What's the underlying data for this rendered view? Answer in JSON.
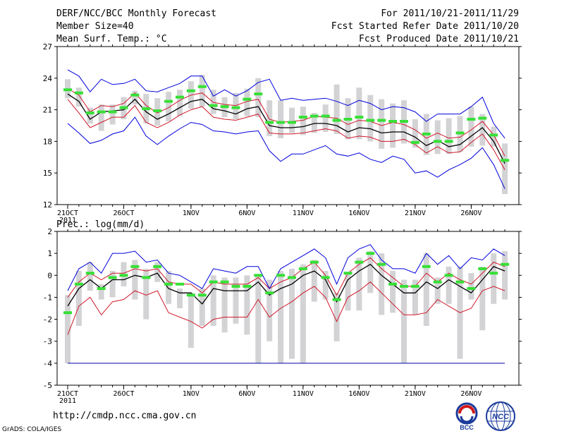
{
  "header": {
    "title": "DERF/NCC/BCC Monthly Forecast",
    "member_size": "Member Size=40",
    "variable": "Mean Surf. Temp.: °C",
    "period": "For 2011/10/21-2011/11/29",
    "fcst_started": "Fcst Started Refer Date 2011/10/20",
    "fcst_produced": "Fcst Produced Date 2011/10/21"
  },
  "footer": {
    "url": "http://cmdp.ncc.cma.gov.cn",
    "grads": "GrADS: COLA/IGES",
    "logo_bcc": "BCC",
    "logo_ncc": "NCC"
  },
  "colors": {
    "mean": "#000000",
    "spread": "#d01828",
    "envelope": "#0000dd",
    "member_box": "#d3d3d6",
    "control": "#36e036",
    "baseline": "#0000aa"
  },
  "chart_data": [
    {
      "type": "line",
      "title": "Mean Surf. Temp.: °C",
      "ylim": [
        12,
        27
      ],
      "yticks": [
        12,
        15,
        18,
        21,
        24,
        27
      ],
      "xtick_labels": [
        "21OCT",
        "26OCT",
        "1NOV",
        "6NOV",
        "11NOV",
        "16NOV",
        "21NOV",
        "26NOV"
      ],
      "xtick_days": [
        0,
        5,
        11,
        16,
        21,
        26,
        31,
        36
      ],
      "xsub_label": "2011",
      "days": 40,
      "series": [
        {
          "name": "ensemble mean",
          "values": [
            22.5,
            21.8,
            20.1,
            20.8,
            20.9,
            21.0,
            22.0,
            20.8,
            20.1,
            20.6,
            21.2,
            21.8,
            22.0,
            21.1,
            20.9,
            20.6,
            21.1,
            21.3,
            19.5,
            19.3,
            19.3,
            19.4,
            19.7,
            19.7,
            19.5,
            18.9,
            19.3,
            19.2,
            18.8,
            18.9,
            18.9,
            18.4,
            17.6,
            18.1,
            17.5,
            17.7,
            18.5,
            19.3,
            18.0,
            15.9
          ]
        },
        {
          "name": "upper spread",
          "values": [
            23.0,
            22.4,
            20.8,
            21.4,
            21.3,
            21.6,
            22.6,
            21.4,
            20.7,
            21.2,
            21.9,
            22.4,
            22.6,
            21.7,
            21.5,
            21.4,
            21.8,
            22.0,
            20.1,
            19.8,
            19.9,
            20.0,
            20.4,
            20.3,
            20.2,
            19.6,
            20.0,
            19.9,
            19.5,
            19.8,
            19.6,
            19.1,
            18.3,
            18.8,
            18.3,
            18.4,
            19.1,
            19.9,
            18.6,
            16.6
          ]
        },
        {
          "name": "lower spread",
          "values": [
            22.0,
            20.7,
            19.3,
            19.8,
            20.3,
            20.3,
            21.4,
            19.8,
            19.3,
            19.8,
            20.5,
            21.0,
            21.3,
            20.3,
            20.1,
            20.0,
            20.3,
            20.6,
            18.8,
            18.7,
            18.7,
            18.8,
            19.0,
            19.2,
            19.0,
            18.3,
            18.5,
            18.4,
            18.0,
            18.0,
            18.2,
            17.7,
            16.9,
            17.5,
            16.9,
            17.0,
            17.9,
            18.7,
            17.2,
            15.3
          ]
        },
        {
          "name": "max envelope",
          "values": [
            24.8,
            24.2,
            22.7,
            23.9,
            23.4,
            23.5,
            23.9,
            22.8,
            22.7,
            23.1,
            23.5,
            24.2,
            24.2,
            22.3,
            22.9,
            22.3,
            22.8,
            23.6,
            23.9,
            21.9,
            22.1,
            21.9,
            22.0,
            22.1,
            21.8,
            21.4,
            21.9,
            21.6,
            21.0,
            21.3,
            21.2,
            20.8,
            19.9,
            20.6,
            20.6,
            20.6,
            21.3,
            22.2,
            19.7,
            18.3
          ]
        },
        {
          "name": "min envelope",
          "values": [
            19.7,
            18.8,
            17.8,
            18.1,
            18.7,
            19.0,
            20.3,
            18.5,
            17.7,
            18.5,
            19.2,
            19.8,
            19.6,
            19.0,
            18.9,
            18.7,
            18.9,
            19.0,
            17.1,
            16.1,
            16.8,
            16.8,
            17.2,
            17.6,
            16.8,
            16.6,
            16.9,
            16.3,
            16.0,
            16.6,
            16.3,
            15.0,
            15.2,
            14.6,
            15.3,
            15.8,
            16.4,
            17.4,
            15.8,
            13.5
          ]
        },
        {
          "name": "control",
          "values": [
            22.9,
            22.6,
            20.7,
            20.8,
            20.8,
            21.2,
            22.4,
            21.1,
            20.9,
            21.8,
            22.2,
            22.8,
            23.2,
            21.4,
            21.3,
            21.2,
            22.0,
            22.5,
            19.8,
            19.8,
            19.8,
            20.3,
            20.4,
            20.4,
            20.0,
            20.1,
            20.3,
            20.0,
            20.0,
            19.9,
            19.9,
            17.9,
            18.7,
            18.0,
            18.0,
            18.8,
            20.1,
            20.2,
            18.6,
            16.2
          ]
        }
      ],
      "member_range_low": [
        22.1,
        21.3,
        19.7,
        19.0,
        19.6,
        20.1,
        21.5,
        19.7,
        19.5,
        19.9,
        20.4,
        21.1,
        21.3,
        20.6,
        20.3,
        20.1,
        20.4,
        20.3,
        18.5,
        18.3,
        18.8,
        18.6,
        18.8,
        18.9,
        18.7,
        18.2,
        18.2,
        18.0,
        17.3,
        17.4,
        17.8,
        17.4,
        16.7,
        16.8,
        16.8,
        17.0,
        17.5,
        17.6,
        17.5,
        13.0
      ],
      "member_range_high": [
        23.9,
        23.1,
        21.2,
        21.5,
        21.5,
        22.2,
        22.8,
        22.5,
        22.1,
        22.7,
        22.9,
        23.7,
        24.3,
        22.9,
        22.2,
        22.6,
        23.0,
        24.0,
        21.9,
        21.9,
        21.2,
        21.3,
        20.7,
        21.5,
        23.4,
        22.1,
        23.1,
        22.4,
        22.0,
        21.6,
        21.9,
        20.1,
        20.6,
        20.0,
        20.2,
        20.4,
        21.3,
        20.6,
        19.4,
        17.8
      ]
    },
    {
      "type": "line",
      "title": "Prec.: log(mm/d)",
      "ylim": [
        -5,
        2
      ],
      "yticks": [
        -5,
        -4,
        -3,
        -2,
        -1,
        0,
        1,
        2
      ],
      "xtick_labels": [
        "21OCT",
        "26OCT",
        "1NOV",
        "6NOV",
        "11NOV",
        "16NOV",
        "21NOV",
        "26NOV"
      ],
      "xtick_days": [
        0,
        5,
        11,
        16,
        21,
        26,
        31,
        36
      ],
      "xsub_label": "2011",
      "days": 40,
      "baseline": -4,
      "series": [
        {
          "name": "ensemble mean",
          "values": [
            -1.4,
            -0.6,
            -0.2,
            -0.6,
            -0.2,
            -0.2,
            0.0,
            -0.1,
            0.1,
            -0.6,
            -0.8,
            -0.8,
            -1.3,
            -0.6,
            -0.7,
            -0.7,
            -0.7,
            -0.3,
            -0.9,
            -0.6,
            -0.4,
            0.0,
            0.2,
            -0.2,
            -1.2,
            -0.2,
            0.2,
            0.5,
            0.0,
            -0.4,
            -0.8,
            -0.8,
            -0.3,
            -0.6,
            -0.2,
            -0.5,
            -0.8,
            -0.2,
            0.4,
            0.2
          ]
        },
        {
          "name": "upper spread",
          "values": [
            -1.0,
            -0.3,
            0.1,
            -0.2,
            0.1,
            0.1,
            0.3,
            0.2,
            0.3,
            -0.3,
            -0.4,
            -0.4,
            -0.8,
            -0.3,
            -0.4,
            -0.4,
            -0.4,
            -0.1,
            -0.6,
            -0.3,
            -0.1,
            0.3,
            0.6,
            0.0,
            -0.9,
            0.1,
            0.5,
            0.8,
            0.3,
            -0.1,
            -0.5,
            -0.5,
            0.1,
            -0.3,
            0.1,
            -0.2,
            -0.4,
            0.1,
            0.6,
            0.4
          ]
        },
        {
          "name": "lower spread",
          "values": [
            -2.7,
            -1.4,
            -1.0,
            -1.8,
            -1.2,
            -1.1,
            -0.7,
            -0.9,
            -0.7,
            -1.7,
            -1.9,
            -2.1,
            -2.4,
            -2.0,
            -1.9,
            -1.9,
            -1.9,
            -1.1,
            -1.9,
            -1.5,
            -1.2,
            -0.8,
            -0.5,
            -1.0,
            -2.1,
            -1.0,
            -0.7,
            -0.3,
            -0.8,
            -1.3,
            -1.8,
            -1.8,
            -1.7,
            -1.1,
            -1.4,
            -1.7,
            -1.5,
            -0.7,
            -0.5,
            -0.7
          ]
        },
        {
          "name": "max envelope",
          "values": [
            -0.7,
            0.3,
            0.6,
            0.1,
            1.0,
            1.0,
            1.1,
            0.6,
            0.7,
            0.1,
            0.0,
            -0.3,
            -0.6,
            0.3,
            0.2,
            0.1,
            0.4,
            0.4,
            -0.6,
            0.3,
            0.6,
            0.9,
            1.2,
            0.8,
            -0.4,
            0.8,
            1.2,
            1.4,
            0.7,
            0.3,
            0.3,
            0.1,
            1.0,
            0.5,
            0.9,
            0.3,
            0.8,
            0.7,
            1.2,
            0.9
          ]
        },
        {
          "name": "control",
          "values": [
            -1.7,
            -0.4,
            0.1,
            -0.6,
            -0.1,
            0.0,
            0.4,
            -0.1,
            0.4,
            -0.4,
            -0.4,
            -0.9,
            -0.9,
            -0.3,
            -0.3,
            -0.5,
            -0.5,
            0.0,
            -0.8,
            0.0,
            -0.1,
            0.3,
            0.6,
            -0.1,
            -1.1,
            0.1,
            0.6,
            1.0,
            0.5,
            -0.4,
            -0.5,
            -0.5,
            0.4,
            -0.3,
            0.0,
            -0.3,
            -0.6,
            0.3,
            0.1,
            0.5
          ]
        }
      ],
      "member_range_low": [
        -4.0,
        -2.3,
        -0.7,
        -1.1,
        -1.0,
        -0.5,
        -1.1,
        -2.0,
        -0.3,
        -1.3,
        -1.5,
        -3.3,
        -2.3,
        -2.3,
        -2.6,
        -2.2,
        -2.7,
        -4.0,
        -3.0,
        -4.0,
        -3.8,
        -4.0,
        -1.2,
        -1.1,
        -3.0,
        -1.6,
        -1.6,
        -0.8,
        -1.8,
        -1.7,
        -4.0,
        -1.8,
        -2.3,
        -1.3,
        -1.3,
        -3.8,
        -1.1,
        -2.5,
        -1.3,
        -1.1
      ],
      "member_range_high": [
        -0.9,
        0.2,
        0.6,
        -0.4,
        0.2,
        0.6,
        0.7,
        0.3,
        0.6,
        0.2,
        -0.6,
        -0.8,
        -0.6,
        0.0,
        -0.1,
        -0.1,
        0.0,
        0.0,
        -0.2,
        0.2,
        0.3,
        0.5,
        0.7,
        0.2,
        -0.8,
        0.1,
        0.8,
        1.1,
        1.0,
        0.2,
        -0.2,
        -0.2,
        1.0,
        -0.1,
        0.4,
        0.4,
        0.1,
        0.4,
        1.0,
        1.1
      ]
    }
  ]
}
